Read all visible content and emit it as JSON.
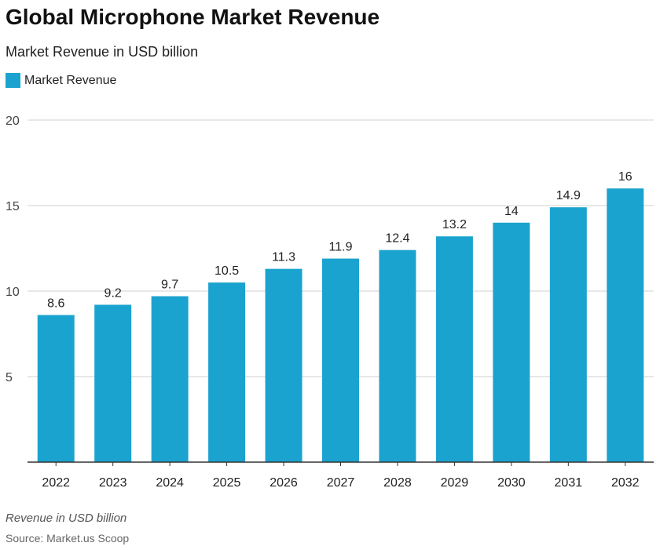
{
  "chart_data": {
    "type": "bar",
    "title": "Global Microphone Market Revenue",
    "subtitle": "Market Revenue in USD billion",
    "categories": [
      "2022",
      "2023",
      "2024",
      "2025",
      "2026",
      "2027",
      "2028",
      "2029",
      "2030",
      "2031",
      "2032"
    ],
    "series": [
      {
        "name": "Market Revenue",
        "values": [
          8.6,
          9.2,
          9.7,
          10.5,
          11.3,
          11.9,
          12.4,
          13.2,
          14,
          14.9,
          16
        ],
        "color": "#1ba3cf"
      }
    ],
    "ylim": [
      0,
      20
    ],
    "yticks": [
      5,
      10,
      15,
      20
    ],
    "grid": true,
    "legend": "top-left",
    "note": "Revenue in USD billion",
    "source": "Source: Market.us Scoop"
  }
}
